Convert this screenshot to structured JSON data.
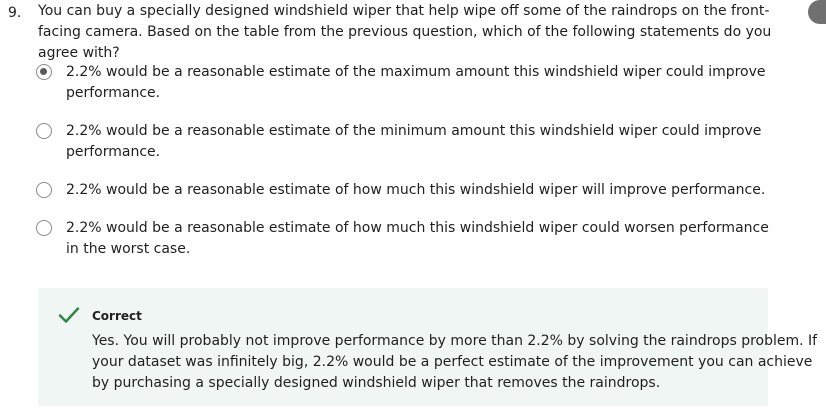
{
  "question": {
    "number": "9.",
    "text": "You can buy a specially designed windshield wiper that help wipe off some of the raindrops on the front-facing camera. Based on the table from the previous question, which of the following statements do you agree with?"
  },
  "options": [
    {
      "label": "2.2% would be a reasonable estimate of the maximum amount this windshield wiper could improve performance.",
      "selected": true
    },
    {
      "label": "2.2% would be a reasonable estimate of the minimum amount this windshield wiper could improve performance.",
      "selected": false
    },
    {
      "label": "2.2% would be a reasonable estimate of how much this windshield wiper will improve performance.",
      "selected": false
    },
    {
      "label": "2.2% would be a reasonable estimate of how much this windshield wiper could worsen performance in the worst case.",
      "selected": false
    }
  ],
  "feedback": {
    "title": "Correct",
    "text": "Yes. You will probably not improve performance by more than 2.2% by solving the raindrops problem. If your dataset was infinitely big, 2.2% would be a perfect estimate of the improvement you can achieve by purchasing a specially designed windshield wiper that removes the raindrops.",
    "icon": "checkmark-icon",
    "accent_color": "#2e8540",
    "background_color": "#f0f6f3"
  },
  "colors": {
    "text": "#1f1f1f",
    "radio_border": "#8a8a8a",
    "radio_dot": "#5a5a5a"
  }
}
